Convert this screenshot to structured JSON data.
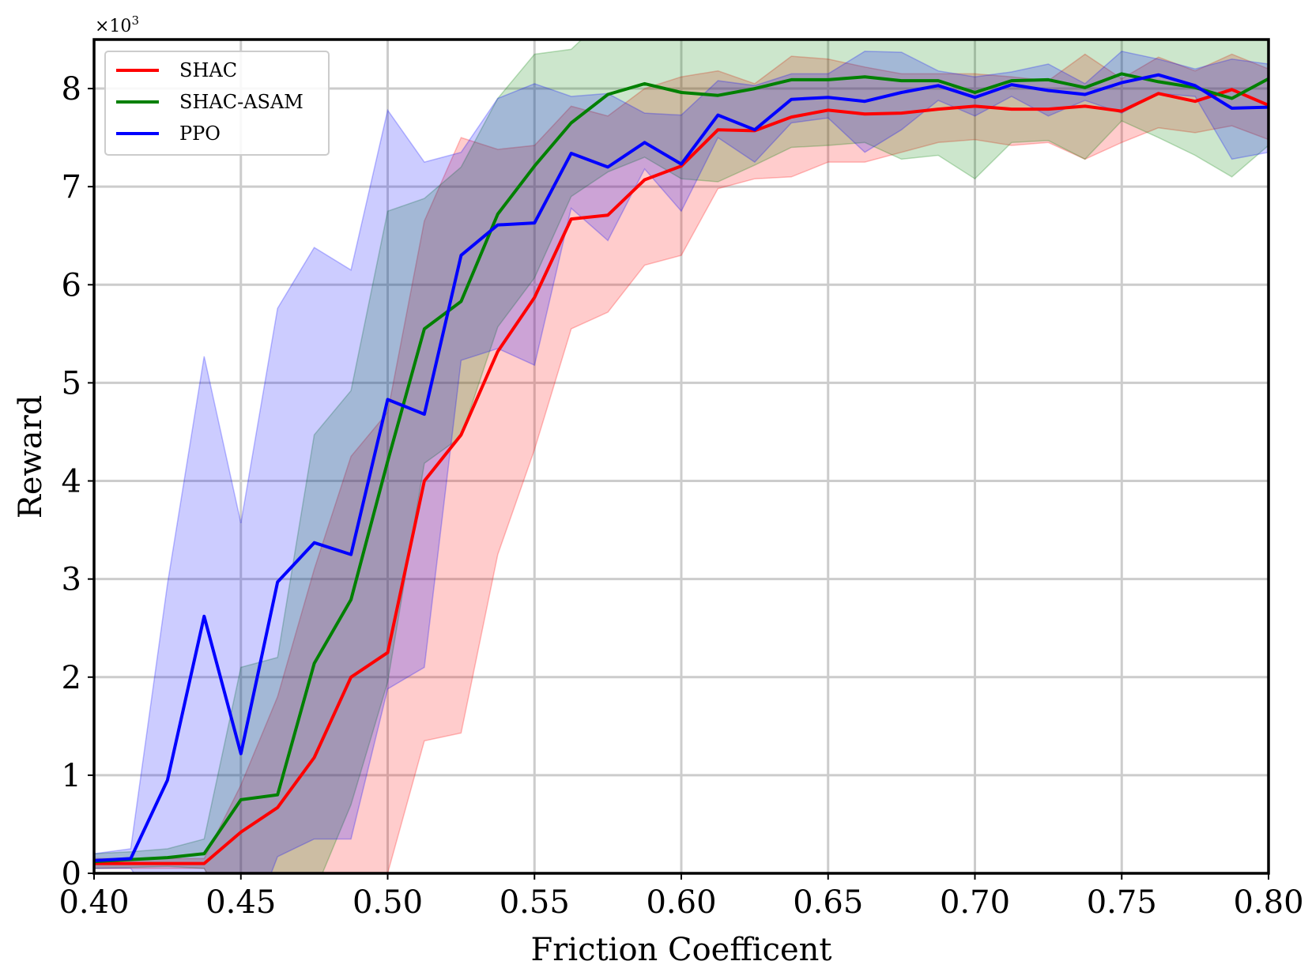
{
  "chart_data": {
    "type": "line",
    "title": "",
    "xlabel": "Friction Coefficent",
    "ylabel": "Reward",
    "y_multiplier_label": "×10",
    "y_multiplier_exp": "3",
    "xlim": [
      0.4,
      0.8
    ],
    "ylim": [
      0,
      8.5
    ],
    "x_ticks": [
      "0.40",
      "0.45",
      "0.50",
      "0.55",
      "0.60",
      "0.65",
      "0.70",
      "0.75",
      "0.80"
    ],
    "x_tick_values": [
      0.4,
      0.45,
      0.5,
      0.55,
      0.6,
      0.65,
      0.7,
      0.75,
      0.8
    ],
    "y_ticks": [
      "0",
      "1",
      "2",
      "3",
      "4",
      "5",
      "6",
      "7",
      "8"
    ],
    "y_tick_values": [
      0,
      1,
      2,
      3,
      4,
      5,
      6,
      7,
      8
    ],
    "grid": true,
    "legend_position": "top-left",
    "x": [
      0.4,
      0.4125,
      0.425,
      0.4375,
      0.45,
      0.4625,
      0.475,
      0.4875,
      0.5,
      0.5125,
      0.525,
      0.5375,
      0.55,
      0.5625,
      0.575,
      0.5875,
      0.6,
      0.6125,
      0.625,
      0.6375,
      0.65,
      0.6625,
      0.675,
      0.6875,
      0.7,
      0.7125,
      0.725,
      0.7375,
      0.75,
      0.7625,
      0.775,
      0.7875,
      0.8
    ],
    "series": [
      {
        "name": "SHAC",
        "color": "#ff0000",
        "fill_color": "#ff0000",
        "mean": [
          0.1,
          0.1,
          0.1,
          0.1,
          0.42,
          0.67,
          1.18,
          2.0,
          2.25,
          4.0,
          4.47,
          5.32,
          5.87,
          6.67,
          6.71,
          7.07,
          7.21,
          7.58,
          7.57,
          7.71,
          7.78,
          7.74,
          7.75,
          7.79,
          7.82,
          7.79,
          7.79,
          7.82,
          7.77,
          7.95,
          7.87,
          7.99,
          7.83
        ],
        "upper": [
          0.15,
          0.15,
          0.15,
          0.15,
          0.9,
          1.8,
          3.1,
          4.25,
          4.7,
          6.65,
          7.5,
          7.38,
          7.42,
          7.82,
          7.72,
          8.0,
          8.12,
          8.18,
          8.05,
          8.33,
          8.3,
          8.22,
          8.15,
          8.15,
          8.15,
          8.12,
          8.08,
          8.35,
          8.1,
          8.32,
          8.18,
          8.35,
          8.2
        ],
        "lower": [
          0.05,
          0.05,
          0.05,
          0.05,
          -0.6,
          -0.6,
          -0.3,
          0.0,
          0.0,
          1.35,
          1.43,
          3.25,
          4.32,
          5.55,
          5.72,
          6.2,
          6.3,
          6.98,
          7.08,
          7.1,
          7.25,
          7.25,
          7.35,
          7.45,
          7.48,
          7.42,
          7.45,
          7.28,
          7.45,
          7.6,
          7.55,
          7.62,
          7.48
        ]
      },
      {
        "name": "SHAC-ASAM",
        "color": "#008000",
        "fill_color": "#008000",
        "mean": [
          0.12,
          0.14,
          0.16,
          0.2,
          0.75,
          0.8,
          2.14,
          2.79,
          4.2,
          5.55,
          5.83,
          6.72,
          7.21,
          7.65,
          7.94,
          8.05,
          7.96,
          7.93,
          8.0,
          8.09,
          8.09,
          8.12,
          8.08,
          8.08,
          7.96,
          8.08,
          8.09,
          8.01,
          8.15,
          8.07,
          8.01,
          7.9,
          8.1
        ],
        "upper": [
          0.2,
          0.22,
          0.25,
          0.35,
          2.1,
          2.2,
          4.47,
          4.92,
          6.75,
          6.88,
          7.2,
          7.9,
          8.35,
          8.4,
          8.75,
          8.8,
          8.8,
          8.8,
          8.8,
          8.8,
          8.8,
          8.8,
          8.8,
          8.8,
          8.8,
          8.8,
          8.8,
          8.8,
          8.8,
          8.8,
          8.8,
          8.8,
          8.8
        ],
        "lower": [
          0.05,
          0.06,
          0.07,
          0.05,
          -0.6,
          -0.4,
          -0.2,
          0.7,
          1.95,
          4.18,
          4.45,
          5.57,
          6.07,
          6.9,
          7.15,
          7.3,
          7.08,
          7.05,
          7.22,
          7.4,
          7.42,
          7.45,
          7.28,
          7.32,
          7.08,
          7.45,
          7.47,
          7.28,
          7.67,
          7.5,
          7.32,
          7.1,
          7.42
        ]
      },
      {
        "name": "PPO",
        "color": "#0000ff",
        "fill_color": "#0000ff",
        "mean": [
          0.13,
          0.15,
          0.95,
          2.62,
          1.22,
          2.97,
          3.37,
          3.25,
          4.83,
          4.68,
          6.3,
          6.61,
          6.63,
          7.34,
          7.2,
          7.45,
          7.23,
          7.73,
          7.58,
          7.89,
          7.91,
          7.87,
          7.96,
          8.03,
          7.91,
          8.04,
          7.98,
          7.94,
          8.06,
          8.14,
          8.03,
          7.8,
          7.81
        ],
        "upper": [
          0.2,
          0.25,
          2.95,
          5.27,
          3.57,
          5.76,
          6.38,
          6.15,
          7.78,
          7.25,
          7.35,
          7.9,
          8.05,
          7.92,
          7.95,
          7.75,
          7.73,
          8.08,
          8.03,
          8.15,
          8.15,
          8.38,
          8.37,
          8.18,
          8.12,
          8.17,
          8.25,
          8.05,
          8.38,
          8.3,
          8.2,
          8.3,
          8.25
        ],
        "lower": [
          0.05,
          0.05,
          -0.5,
          -0.6,
          -0.8,
          0.17,
          0.35,
          0.35,
          1.88,
          2.1,
          5.23,
          5.35,
          5.18,
          6.78,
          6.45,
          7.18,
          6.75,
          7.5,
          7.25,
          7.65,
          7.7,
          7.35,
          7.58,
          7.88,
          7.72,
          7.92,
          7.72,
          7.88,
          7.75,
          7.95,
          7.92,
          7.28,
          7.35
        ]
      }
    ]
  }
}
